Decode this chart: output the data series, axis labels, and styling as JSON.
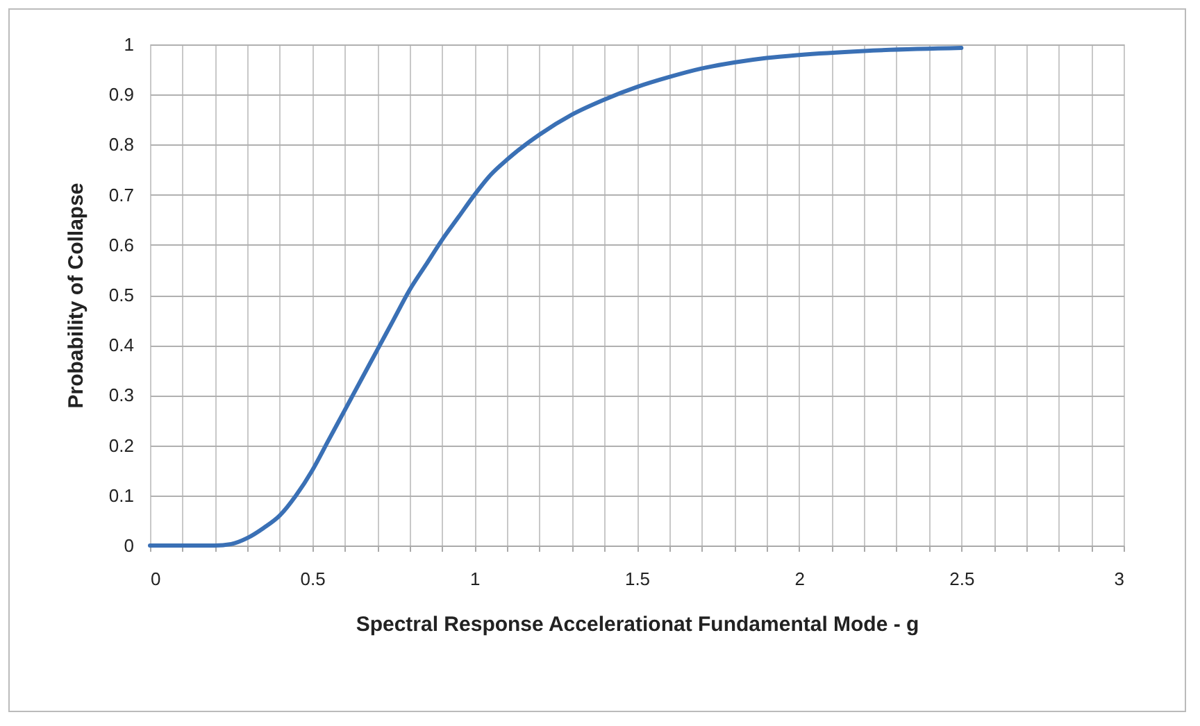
{
  "chart_data": {
    "type": "line",
    "xlabel": "Spectral  Response Accelerationat Fundamental Mode - g",
    "ylabel": "Probability of Collapse",
    "x": [
      0,
      0.1,
      0.2,
      0.25,
      0.3,
      0.35,
      0.4,
      0.45,
      0.5,
      0.55,
      0.6,
      0.65,
      0.7,
      0.75,
      0.8,
      0.85,
      0.9,
      0.95,
      1.0,
      1.05,
      1.1,
      1.2,
      1.3,
      1.4,
      1.5,
      1.6,
      1.7,
      1.8,
      1.9,
      2.0,
      2.2,
      2.5
    ],
    "series": [
      {
        "color": "#3a70b5",
        "values": [
          0,
          0,
          0,
          0.003,
          0.015,
          0.035,
          0.06,
          0.1,
          0.15,
          0.21,
          0.27,
          0.33,
          0.39,
          0.45,
          0.51,
          0.56,
          0.61,
          0.655,
          0.7,
          0.74,
          0.77,
          0.82,
          0.86,
          0.89,
          0.915,
          0.935,
          0.952,
          0.964,
          0.973,
          0.979,
          0.987,
          0.993
        ]
      }
    ],
    "xlim": [
      0,
      3
    ],
    "ylim": [
      0,
      1
    ],
    "xticks": [
      0,
      {
        "value": 0.1,
        "label": null
      },
      {
        "value": 0.2,
        "label": null
      },
      {
        "value": 0.3,
        "label": null
      },
      {
        "value": 0.4,
        "label": null
      },
      0.5,
      {
        "value": 0.6,
        "label": null
      },
      {
        "value": 0.7,
        "label": null
      },
      {
        "value": 0.8,
        "label": null
      },
      {
        "value": 0.9,
        "label": null
      },
      1,
      {
        "value": 1.1,
        "label": null
      },
      {
        "value": 1.2,
        "label": null
      },
      {
        "value": 1.3,
        "label": null
      },
      {
        "value": 1.4,
        "label": null
      },
      1.5,
      {
        "value": 1.6,
        "label": null
      },
      {
        "value": 1.7,
        "label": null
      },
      {
        "value": 1.8,
        "label": null
      },
      {
        "value": 1.9,
        "label": null
      },
      2,
      {
        "value": 2.1,
        "label": null
      },
      {
        "value": 2.2,
        "label": null
      },
      {
        "value": 2.3,
        "label": null
      },
      {
        "value": 2.4,
        "label": null
      },
      2.5,
      {
        "value": 2.6,
        "label": null
      },
      {
        "value": 2.7,
        "label": null
      },
      {
        "value": 2.8,
        "label": null
      },
      {
        "value": 2.9,
        "label": null
      },
      3
    ],
    "yticks": [
      0,
      0.1,
      0.2,
      0.3,
      0.4,
      0.5,
      0.6,
      0.7,
      0.8,
      0.9,
      1
    ],
    "grid": true,
    "line_style": "solid",
    "marker": "none"
  }
}
